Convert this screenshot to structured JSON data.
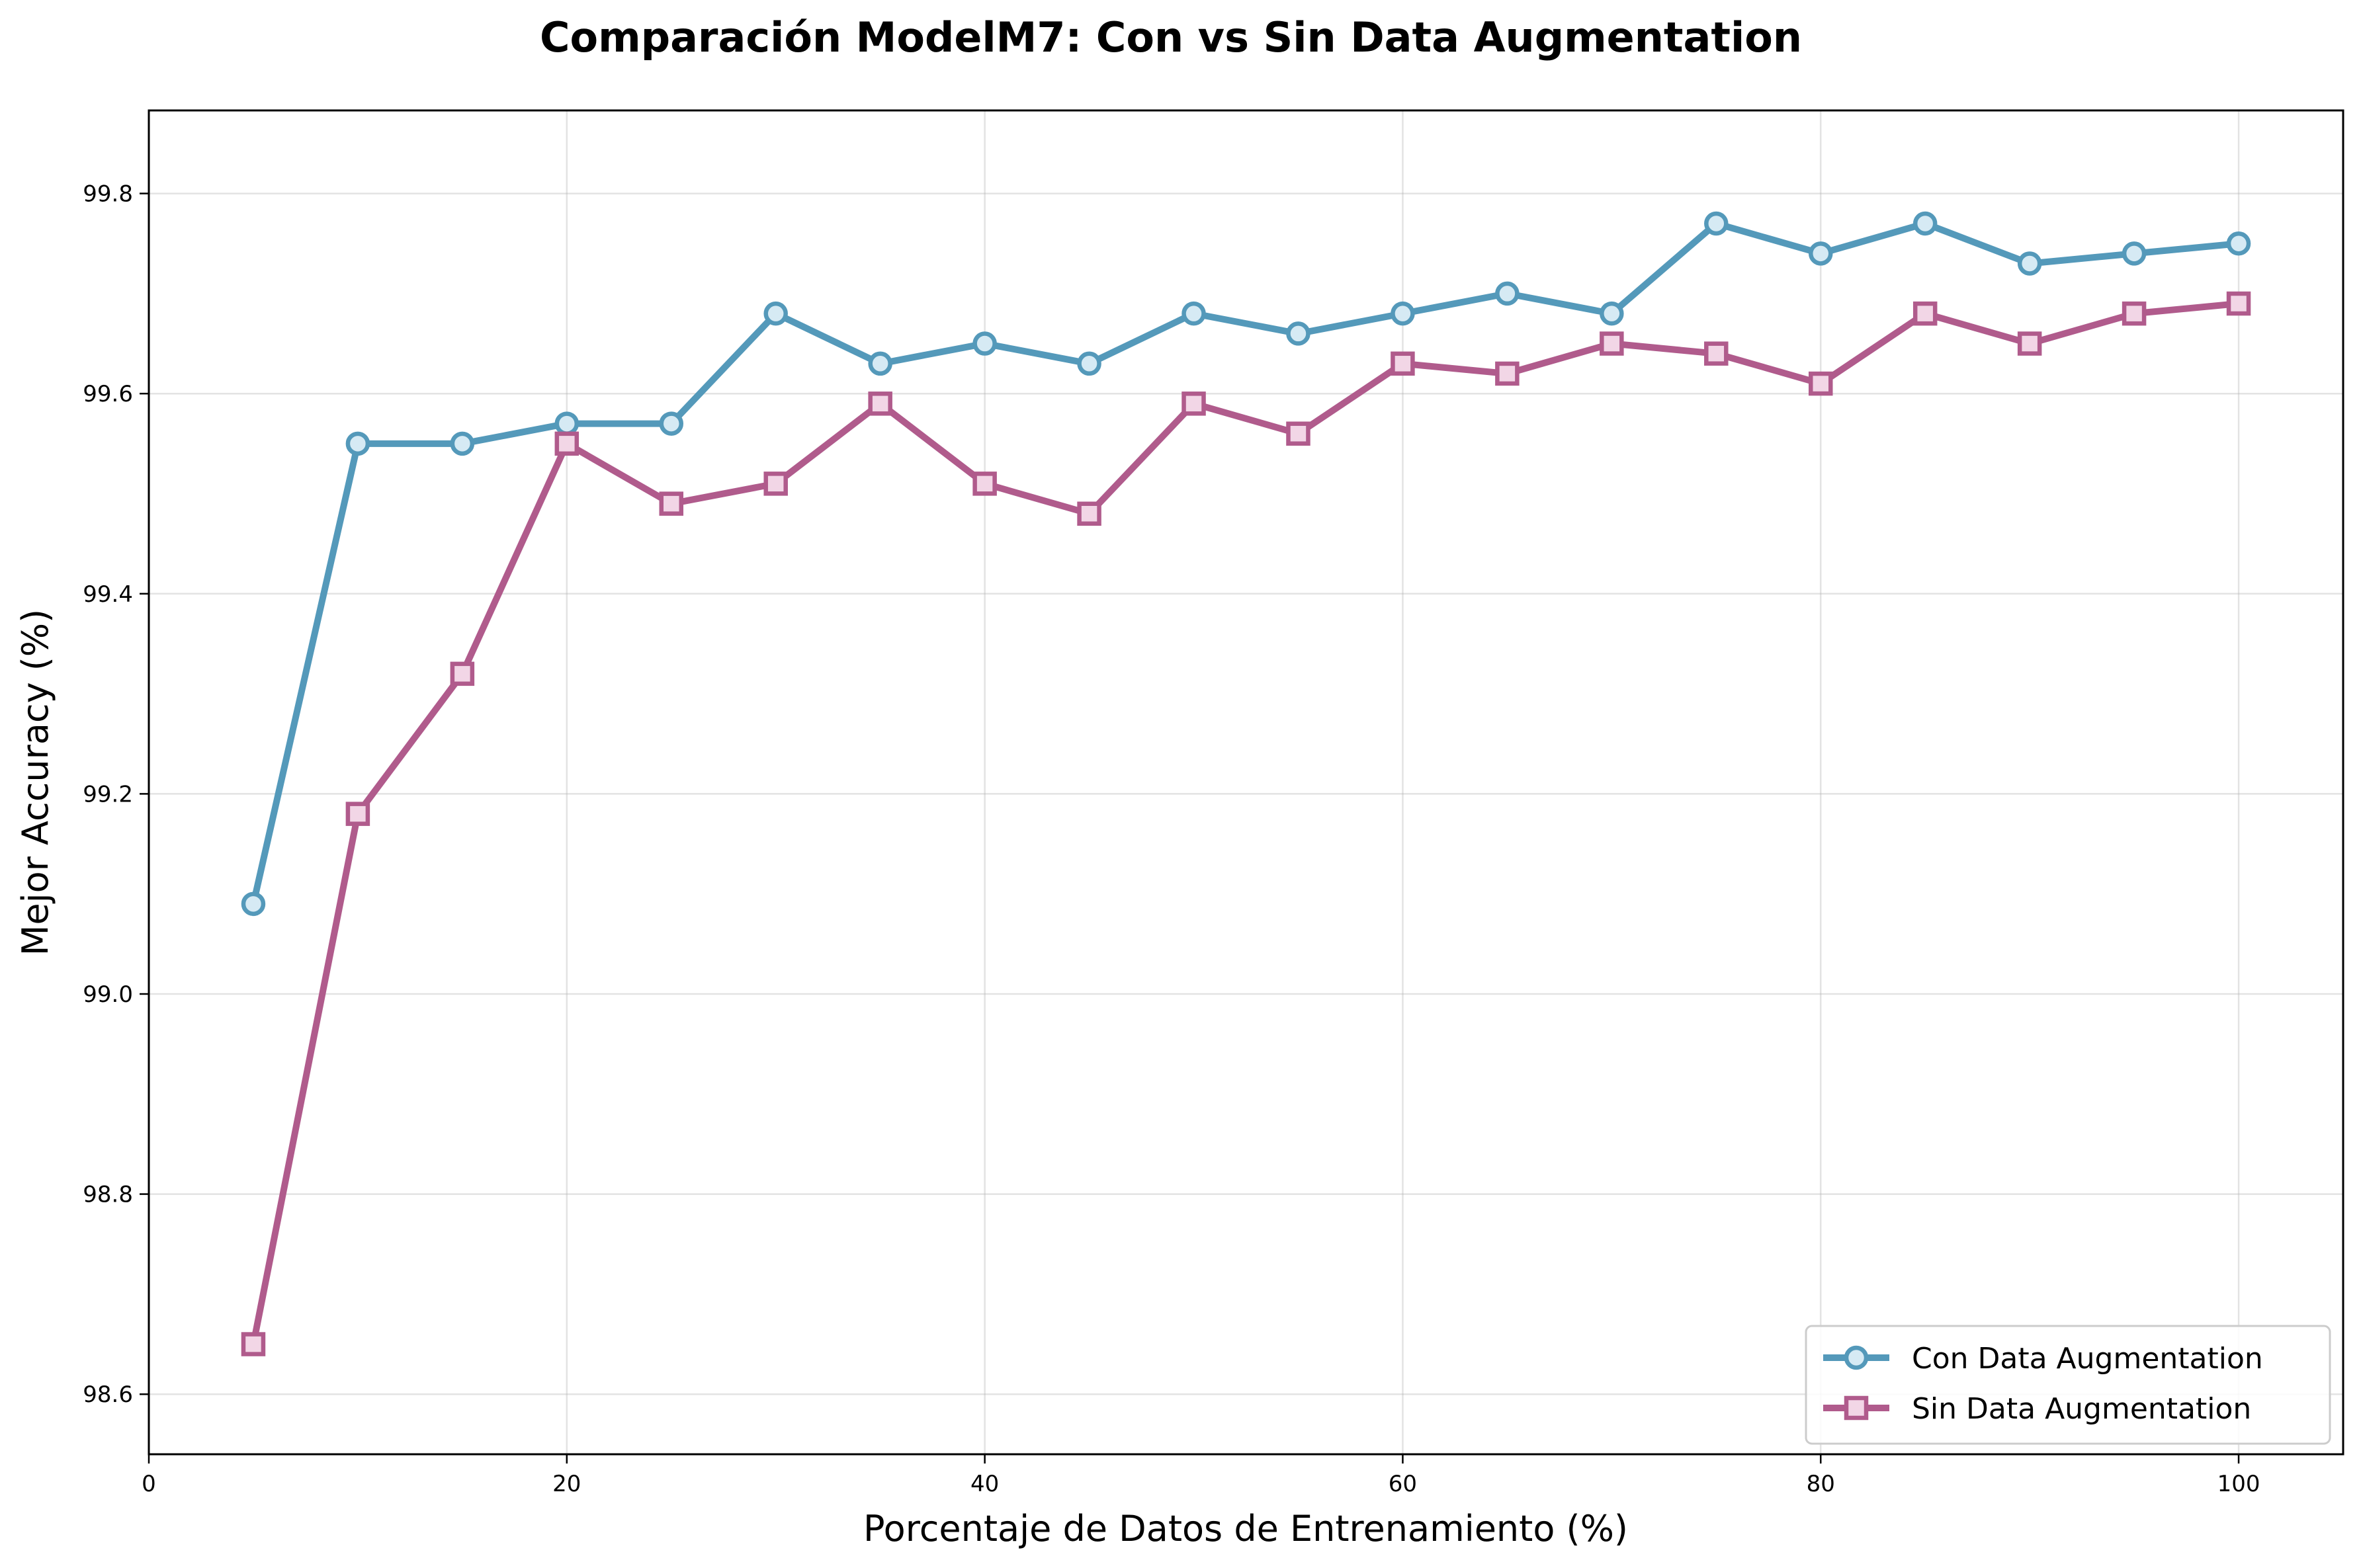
{
  "chart_data": {
    "type": "line",
    "title": "Comparación ModelM7: Con vs Sin Data Augmentation",
    "xlabel": "Porcentaje de Datos de Entrenamiento (%)",
    "ylabel": "Mejor Accuracy (%)",
    "xlim": [
      0,
      105
    ],
    "ylim": [
      98.54,
      99.883
    ],
    "xticks": [
      0,
      20,
      40,
      60,
      80,
      100
    ],
    "xtick_labels": [
      "0",
      "20",
      "40",
      "60",
      "80",
      "100"
    ],
    "yticks": [
      98.6,
      98.8,
      99.0,
      99.2,
      99.4,
      99.6,
      99.8
    ],
    "ytick_labels": [
      "98.6",
      "98.8",
      "99.0",
      "99.2",
      "99.4",
      "99.6",
      "99.8"
    ],
    "grid": true,
    "legend_position": "bottom-right",
    "x": [
      5,
      10,
      15,
      20,
      25,
      30,
      35,
      40,
      45,
      50,
      55,
      60,
      65,
      70,
      75,
      80,
      85,
      90,
      95,
      100
    ],
    "series": [
      {
        "name": "Con Data Augmentation",
        "marker": "circle",
        "color": "#5499ba",
        "fill": "#d6eaf4",
        "values": [
          99.09,
          99.55,
          99.55,
          99.57,
          99.57,
          99.68,
          99.63,
          99.65,
          99.63,
          99.68,
          99.66,
          99.68,
          99.7,
          99.68,
          99.77,
          99.74,
          99.77,
          99.73,
          99.74,
          99.75
        ]
      },
      {
        "name": "Sin Data Augmentation",
        "marker": "square",
        "color": "#b05b8c",
        "fill": "#f2d6e6",
        "values": [
          98.65,
          99.18,
          99.32,
          99.55,
          99.49,
          99.51,
          99.59,
          99.51,
          99.48,
          99.59,
          99.56,
          99.63,
          99.62,
          99.65,
          99.64,
          99.61,
          99.68,
          99.65,
          99.68,
          99.69
        ]
      }
    ]
  }
}
